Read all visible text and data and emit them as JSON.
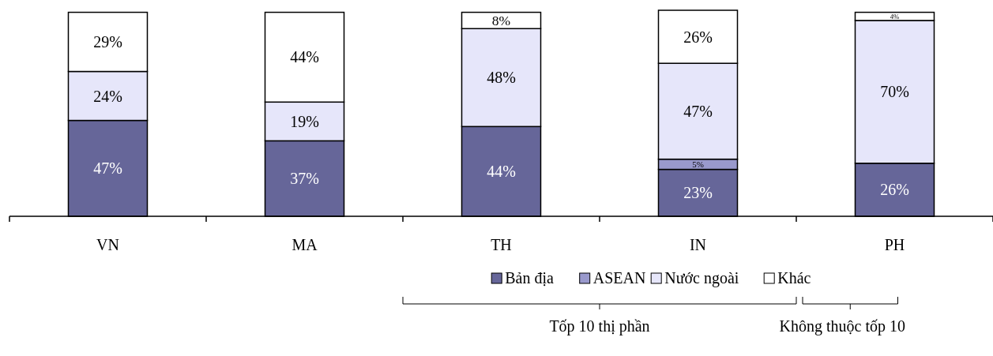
{
  "chart_data": {
    "type": "bar",
    "stacked": true,
    "categories": [
      "VN",
      "MA",
      "TH",
      "IN",
      "PH"
    ],
    "series": [
      {
        "name": "Bản địa",
        "color": "#666699",
        "values": [
          47,
          37,
          44,
          23,
          26
        ],
        "value_labels": [
          "47%",
          "37%",
          "44%",
          "23%",
          "26%"
        ]
      },
      {
        "name": "ASEAN",
        "color": "#9999cc",
        "values": [
          0,
          0,
          0,
          5,
          0
        ],
        "value_labels": [
          null,
          null,
          null,
          "5%",
          null
        ]
      },
      {
        "name": "Nước ngoài",
        "color": "#e6e6fa",
        "values": [
          24,
          19,
          48,
          47,
          70
        ],
        "value_labels": [
          "24%",
          "19%",
          "48%",
          "47%",
          "70%"
        ]
      },
      {
        "name": "Khác",
        "color": "#ffffff",
        "values": [
          29,
          44,
          8,
          26,
          4
        ],
        "value_labels": [
          "29%",
          "44%",
          "8%",
          "26%",
          "4%"
        ]
      }
    ],
    "legend": "bottom",
    "annotations": [
      "Tốp 10 thị phần",
      "Không thuộc tốp 10"
    ]
  }
}
